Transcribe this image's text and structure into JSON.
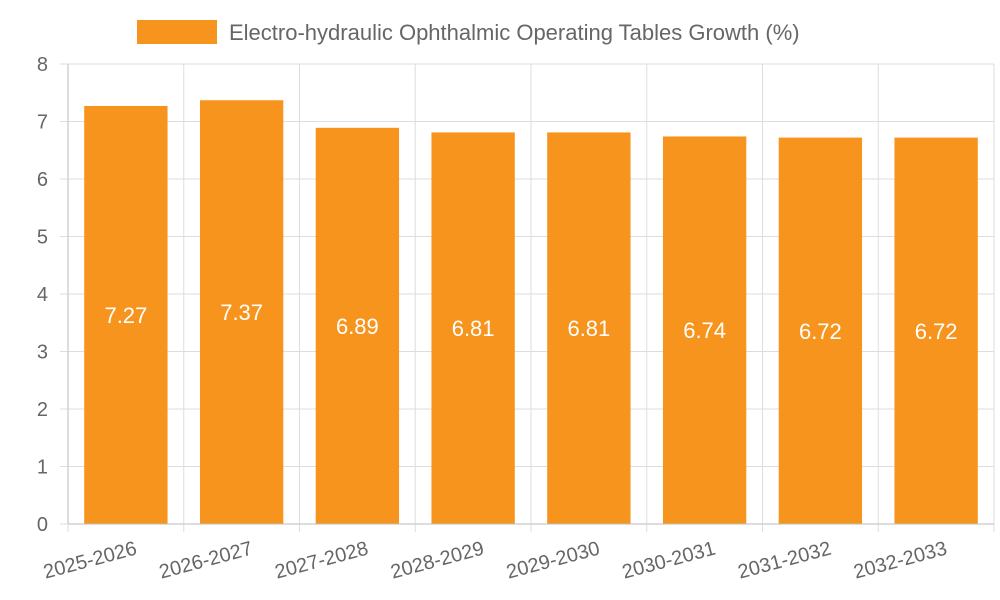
{
  "chart_data": {
    "type": "bar",
    "title": "",
    "xlabel": "",
    "ylabel": "",
    "categories": [
      "2025-2026",
      "2026-2027",
      "2027-2028",
      "2028-2029",
      "2029-2030",
      "2030-2031",
      "2031-2032",
      "2032-2033"
    ],
    "series": [
      {
        "name": "Electro-hydraulic Ophthalmic Operating Tables Growth (%)",
        "values": [
          7.27,
          7.37,
          6.89,
          6.81,
          6.81,
          6.74,
          6.72,
          6.72
        ],
        "color": "#f7941d"
      }
    ],
    "ylim": [
      0,
      8
    ],
    "yticks": [
      0,
      1,
      2,
      3,
      4,
      5,
      6,
      7,
      8
    ],
    "grid": true,
    "legend_position": "top-center",
    "data_labels": [
      "7.27",
      "7.37",
      "6.89",
      "6.81",
      "6.81",
      "6.74",
      "6.72",
      "6.72"
    ]
  }
}
